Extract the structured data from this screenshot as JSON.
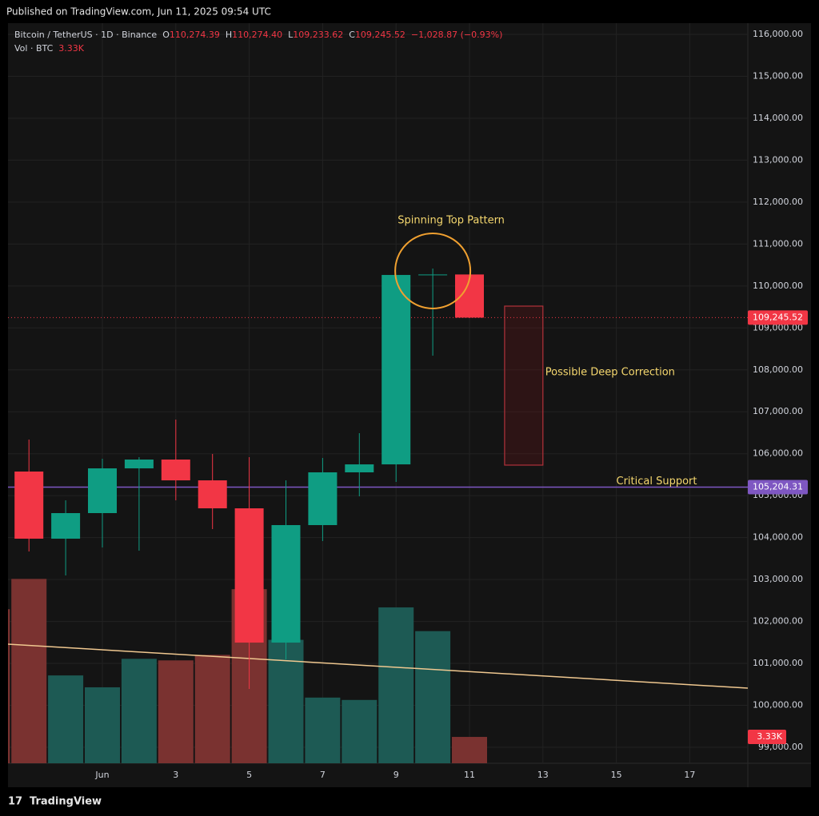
{
  "published": "Published on TradingView.com, Jun 11, 2025 09:54 UTC",
  "brand": "TradingView",
  "chart_data": {
    "type": "candlestick",
    "header": {
      "symbol": "Bitcoin / TetherUS · 1D · Binance",
      "open_label": "O",
      "open": "110,274.39",
      "high_label": "H",
      "high": "110,274.40",
      "low_label": "L",
      "low": "109,233.62",
      "close_label": "C",
      "close": "109,245.52",
      "change": "−1,028.87 (−0.93%)",
      "volume_label": "Vol · BTC",
      "volume": "3.33K"
    },
    "categories": [
      null,
      null,
      null,
      "Jun",
      null,
      "3",
      null,
      "5",
      null,
      "7",
      null,
      "9",
      null,
      "11",
      null,
      "13",
      null,
      "15",
      null,
      "17",
      null
    ],
    "open": [
      null,
      105575,
      103974,
      104584,
      105651,
      105861,
      105365,
      104698,
      101496,
      104298,
      105556,
      105746,
      110263,
      110274.39,
      null,
      null,
      null,
      null,
      null,
      null,
      null
    ],
    "high": [
      null,
      106337,
      104889,
      105880,
      105918,
      106814,
      105994,
      105918,
      105365,
      105899,
      106490,
      110263,
      110416,
      110274.4,
      null,
      null,
      null,
      null,
      null,
      null,
      null
    ],
    "low": [
      null,
      103669,
      103097,
      103764,
      103688,
      104889,
      104203,
      100391,
      101096,
      103917,
      104984,
      105327,
      108338,
      109233.62,
      null,
      null,
      null,
      null,
      null,
      null,
      null
    ],
    "close": [
      null,
      103974,
      104584,
      105651,
      105861,
      105365,
      104698,
      101496,
      104298,
      105556,
      105746,
      110263,
      110274.39,
      109245.52,
      null,
      null,
      null,
      null,
      null,
      null,
      null
    ],
    "up_color": "#0f9d83",
    "down_color": "#f23645",
    "volume": [
      19470,
      23300,
      11100,
      9600,
      13200,
      13000,
      13700,
      22000,
      15600,
      8300,
      8000,
      19700,
      16700,
      3330,
      null,
      null,
      null,
      null,
      null,
      null,
      null
    ],
    "volume_value_labels": [
      null,
      null,
      null,
      null,
      null,
      null,
      null,
      null,
      null,
      null,
      null,
      null,
      null,
      "3.33K",
      null,
      null,
      null,
      null,
      null,
      null,
      null
    ],
    "volume_colors": [
      "#7a3230",
      "#7a3230",
      "#1d5a54",
      "#1d5a54",
      "#1d5a54",
      "#7a3230",
      "#7a3230",
      "#7a3230",
      "#1d5a54",
      "#1d5a54",
      "#1d5a54",
      "#1d5a54",
      "#1d5a54",
      "#7a3230",
      null,
      null,
      null,
      null,
      null,
      null,
      null
    ],
    "volume_lim": [
      0,
      30000
    ],
    "ylim": [
      98600,
      116800
    ],
    "yticks": [
      {
        "value": 99000,
        "label": "99,000.00"
      },
      {
        "value": 100000,
        "label": "100,000.00"
      },
      {
        "value": 101000,
        "label": "101,000.00"
      },
      {
        "value": 102000,
        "label": "102,000.00"
      },
      {
        "value": 103000,
        "label": "103,000.00"
      },
      {
        "value": 104000,
        "label": "104,000.00"
      },
      {
        "value": 105000,
        "label": "105,000.00"
      },
      {
        "value": 106000,
        "label": "106,000.00"
      },
      {
        "value": 107000,
        "label": "107,000.00"
      },
      {
        "value": 108000,
        "label": "108,000.00"
      },
      {
        "value": 109000,
        "label": "109,000.00"
      },
      {
        "value": 110000,
        "label": "110,000.00"
      },
      {
        "value": 111000,
        "label": "111,000.00"
      },
      {
        "value": 112000,
        "label": "112,000.00"
      },
      {
        "value": 113000,
        "label": "113,000.00"
      },
      {
        "value": 114000,
        "label": "114,000.00"
      },
      {
        "value": 115000,
        "label": "115,000.00"
      },
      {
        "value": 116000,
        "label": "116,000.00"
      }
    ],
    "grid": true,
    "last_price": {
      "value": 109245.52,
      "label": "109,245.52",
      "color": "#f23645"
    },
    "support": {
      "value": 105204.31,
      "label": "105,204.31",
      "text": "Critical Support",
      "color": "#7e57c2"
    },
    "correction_box": {
      "text": "Possible Deep Correction",
      "start": 14,
      "end": 15,
      "top": 109520,
      "bottom": 105728,
      "color": "#b2323a"
    },
    "pattern": {
      "text": "Spinning Top Pattern",
      "color": "#f0a030"
    },
    "trend_line": {
      "values": [
        101458,
        100410
      ],
      "color": "#f0c890"
    }
  }
}
